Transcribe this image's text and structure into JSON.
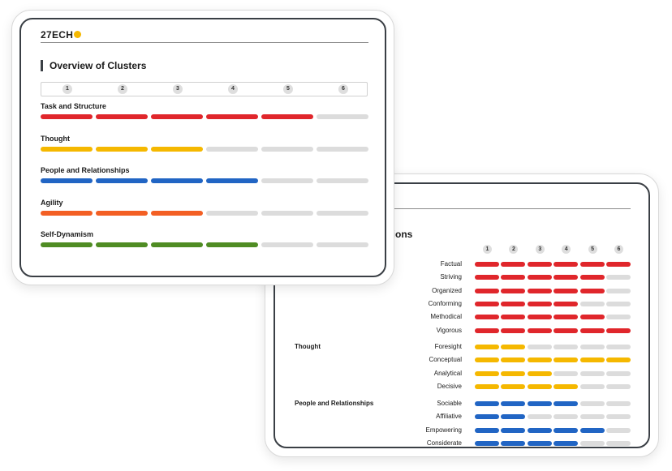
{
  "brand": {
    "logo_text": "27ECH"
  },
  "colors": {
    "red": "#e0262b",
    "yellow": "#f5b800",
    "blue": "#2165c4",
    "orange": "#f35f24",
    "green": "#4f8c23",
    "empty": "#dcdcdc"
  },
  "overview": {
    "title": "Overview of Clusters",
    "scale": [
      "1",
      "2",
      "3",
      "4",
      "5",
      "6"
    ],
    "clusters": [
      {
        "name": "Task and Structure",
        "score": 5,
        "color": "red"
      },
      {
        "name": "Thought",
        "score": 3,
        "color": "yellow"
      },
      {
        "name": "People and Relationships",
        "score": 4,
        "color": "blue"
      },
      {
        "name": "Agility",
        "score": 3,
        "color": "orange"
      },
      {
        "name": "Self-Dynamism",
        "score": 4,
        "color": "green"
      }
    ]
  },
  "dimensions": {
    "title_visible": "sions",
    "scale": [
      "1",
      "2",
      "3",
      "4",
      "5",
      "6"
    ],
    "groups": [
      {
        "name": "",
        "color": "red",
        "items": [
          {
            "name": "Factual",
            "score": 6
          },
          {
            "name": "Striving",
            "score": 5
          },
          {
            "name": "Organized",
            "score": 5
          },
          {
            "name": "Conforming",
            "score": 4
          },
          {
            "name": "Methodical",
            "score": 5
          },
          {
            "name": "Vigorous",
            "score": 6
          }
        ]
      },
      {
        "name": "Thought",
        "color": "yellow",
        "items": [
          {
            "name": "Foresight",
            "score": 2
          },
          {
            "name": "Conceptual",
            "score": 6
          },
          {
            "name": "Analytical",
            "score": 3
          },
          {
            "name": "Decisive",
            "score": 4
          }
        ]
      },
      {
        "name": "People and Relationships",
        "color": "blue",
        "items": [
          {
            "name": "Sociable",
            "score": 4
          },
          {
            "name": "Affiliative",
            "score": 2
          },
          {
            "name": "Empowering",
            "score": 5
          },
          {
            "name": "Considerate",
            "score": 4
          }
        ]
      }
    ]
  }
}
